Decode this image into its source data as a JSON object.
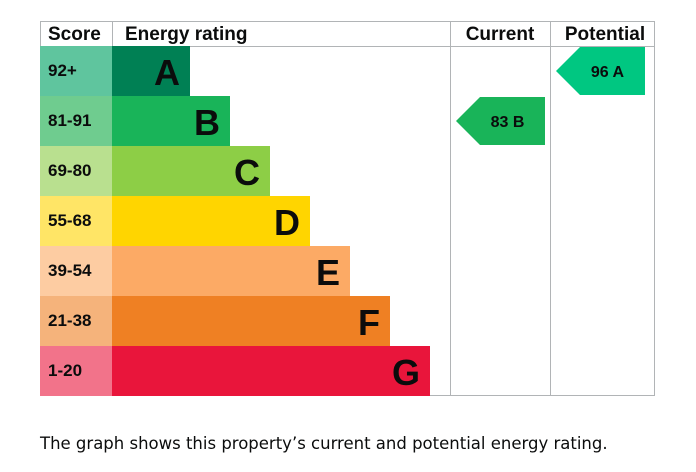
{
  "chart_data": {
    "type": "bar",
    "headers": {
      "score": "Score",
      "rating": "Energy rating",
      "current": "Current",
      "potential": "Potential"
    },
    "bands": [
      {
        "letter": "A",
        "score": "92+",
        "color": "#008054",
        "score_color": "#5fc59e"
      },
      {
        "letter": "B",
        "score": "81-91",
        "color": "#19b459",
        "score_color": "#6fcc8f"
      },
      {
        "letter": "C",
        "score": "69-80",
        "color": "#8dce46",
        "score_color": "#b9e08f"
      },
      {
        "letter": "D",
        "score": "55-68",
        "color": "#ffd500",
        "score_color": "#ffe566"
      },
      {
        "letter": "E",
        "score": "39-54",
        "color": "#fcaa65",
        "score_color": "#fdcca2"
      },
      {
        "letter": "F",
        "score": "21-38",
        "color": "#ef8023",
        "score_color": "#f5b37b"
      },
      {
        "letter": "G",
        "score": "1-20",
        "color": "#e9153b",
        "score_color": "#f2738a"
      }
    ],
    "current": {
      "value": 83,
      "band": "B",
      "label": "83  B",
      "color": "#19b459"
    },
    "potential": {
      "value": 96,
      "band": "A",
      "label": "96  A",
      "color": "#00c781"
    }
  },
  "caption": "The graph shows this property’s current and potential energy rating."
}
